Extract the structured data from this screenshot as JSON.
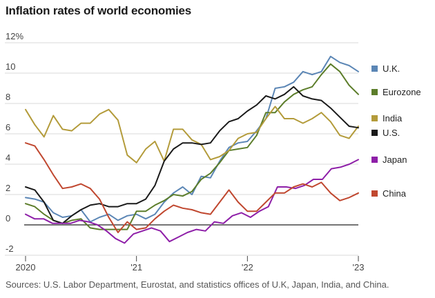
{
  "chart_data": {
    "type": "line",
    "title": "Inflation rates of world economies",
    "source": "Sources: U.S. Labor Department, Eurostat, and statistics offices of U.K, Japan, India, and China.",
    "xlabel": "",
    "ylabel": "",
    "ylim": [
      -2,
      12
    ],
    "yticks": [
      -2,
      0,
      2,
      4,
      6,
      8,
      10,
      12
    ],
    "ytick_labels": [
      "-2",
      "0",
      "2",
      "4",
      "6",
      "8",
      "10",
      "12%"
    ],
    "xticks": [
      0,
      12,
      24,
      36
    ],
    "xtick_labels": [
      "2020",
      "'21",
      "'22",
      "'23"
    ],
    "x_unit": "months since Jan 2020",
    "grid": true,
    "legend_position": "right",
    "series": [
      {
        "name": "U.K.",
        "color": "#5b86b5",
        "values": [
          1.8,
          1.7,
          1.5,
          0.8,
          0.5,
          0.6,
          1.0,
          0.2,
          0.5,
          0.7,
          0.3,
          0.6,
          0.7,
          0.4,
          0.7,
          1.5,
          2.1,
          2.5,
          2.0,
          3.2,
          3.1,
          4.2,
          5.1,
          5.4,
          5.5,
          6.2,
          7.0,
          9.0,
          9.1,
          9.4,
          10.1,
          9.9,
          10.1,
          11.1,
          10.7,
          10.5,
          10.1
        ]
      },
      {
        "name": "Eurozone",
        "color": "#5c7d2a",
        "values": [
          1.4,
          1.2,
          0.7,
          0.3,
          0.1,
          0.3,
          0.4,
          -0.2,
          -0.3,
          -0.3,
          -0.3,
          -0.3,
          0.9,
          0.9,
          1.3,
          1.6,
          2.0,
          1.9,
          2.2,
          3.0,
          3.4,
          4.1,
          4.9,
          5.0,
          5.1,
          5.9,
          7.4,
          7.4,
          8.1,
          8.6,
          8.9,
          9.1,
          9.9,
          10.6,
          10.1,
          9.2,
          8.6
        ]
      },
      {
        "name": "India",
        "color": "#b39b3a",
        "values": [
          7.6,
          6.6,
          5.8,
          7.2,
          6.3,
          6.2,
          6.7,
          6.7,
          7.3,
          7.6,
          6.9,
          4.6,
          4.1,
          5.0,
          5.5,
          4.2,
          6.3,
          6.3,
          5.6,
          5.3,
          4.3,
          4.5,
          4.9,
          5.7,
          6.0,
          6.1,
          7.0,
          7.8,
          7.0,
          7.0,
          6.7,
          7.0,
          7.4,
          6.8,
          5.9,
          5.7,
          6.5
        ]
      },
      {
        "name": "U.S.",
        "color": "#1a1a1a",
        "values": [
          2.5,
          2.3,
          1.5,
          0.3,
          0.1,
          0.6,
          1.0,
          1.3,
          1.4,
          1.2,
          1.2,
          1.4,
          1.4,
          1.7,
          2.6,
          4.2,
          5.0,
          5.4,
          5.4,
          5.3,
          5.4,
          6.2,
          6.8,
          7.0,
          7.5,
          7.9,
          8.5,
          8.3,
          8.6,
          9.1,
          8.5,
          8.3,
          8.2,
          7.7,
          7.1,
          6.5,
          6.4
        ]
      },
      {
        "name": "Japan",
        "color": "#8e1fa8",
        "values": [
          0.7,
          0.4,
          0.4,
          0.1,
          0.1,
          0.1,
          0.3,
          0.2,
          0.0,
          -0.4,
          -0.9,
          -1.2,
          -0.6,
          -0.4,
          -0.2,
          -0.4,
          -1.1,
          -0.8,
          -0.5,
          -0.3,
          -0.4,
          0.2,
          0.1,
          0.6,
          0.8,
          0.5,
          0.9,
          1.2,
          2.5,
          2.5,
          2.4,
          2.6,
          3.0,
          3.0,
          3.7,
          3.8,
          4.0,
          4.3
        ]
      },
      {
        "name": "China",
        "color": "#c0472f",
        "values": [
          5.4,
          5.2,
          4.3,
          3.3,
          2.4,
          2.5,
          2.7,
          2.4,
          1.7,
          0.5,
          -0.5,
          0.2,
          -0.3,
          -0.2,
          0.4,
          0.9,
          1.3,
          1.1,
          1.0,
          0.8,
          0.7,
          1.5,
          2.3,
          1.5,
          0.9,
          0.9,
          1.5,
          2.1,
          2.1,
          2.5,
          2.7,
          2.5,
          2.8,
          2.1,
          1.6,
          1.8,
          2.1
        ]
      }
    ]
  }
}
